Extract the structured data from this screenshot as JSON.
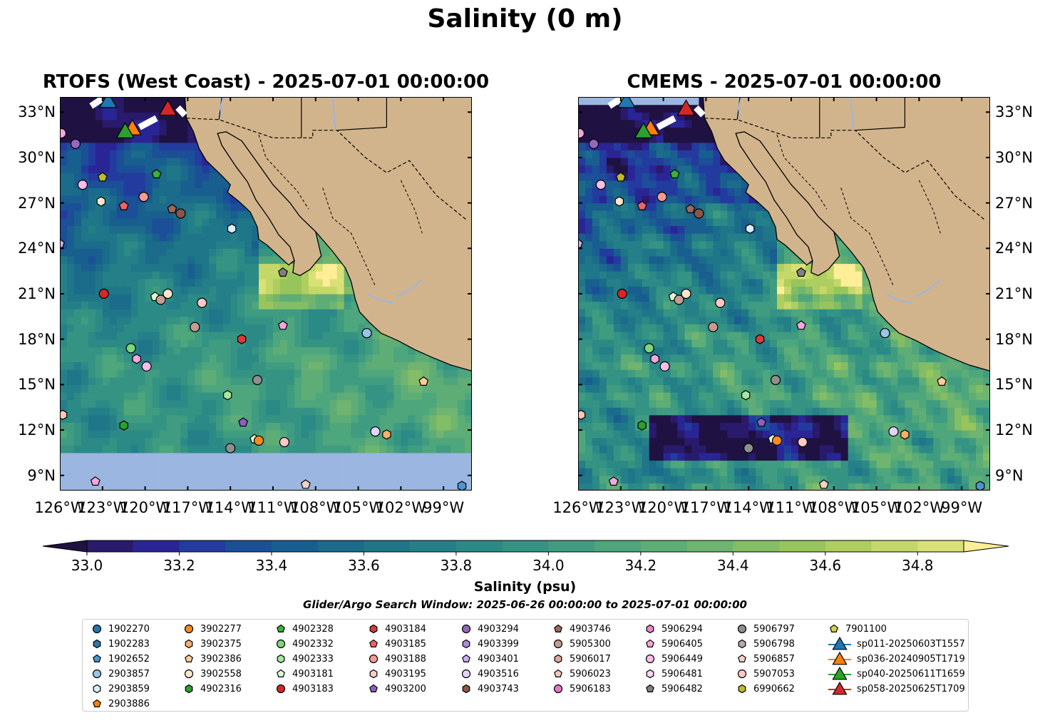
{
  "title": "Salinity (0 m)",
  "panels": [
    {
      "title": "RTOFS (West Coast) - 2025-07-01 00:00:00"
    },
    {
      "title": "CMEMS - 2025-07-01 00:00:00"
    }
  ],
  "lon_ticks": [
    "126°W",
    "123°W",
    "120°W",
    "117°W",
    "114°W",
    "111°W",
    "108°W",
    "105°W",
    "102°W",
    "99°W"
  ],
  "lat_ticks": [
    "33°N",
    "30°N",
    "27°N",
    "24°N",
    "21°N",
    "18°N",
    "15°N",
    "12°N",
    "9°N"
  ],
  "extent": {
    "lon": [
      -126,
      -97
    ],
    "lat": [
      8,
      34
    ]
  },
  "colors": {
    "land": "#d2b48c",
    "nodata": "#9bb6e0"
  },
  "colorbar": {
    "label": "Salinity (psu)",
    "min": 33.0,
    "max": 34.9,
    "ticks": [
      "33.0",
      "33.2",
      "33.4",
      "33.6",
      "33.8",
      "34.0",
      "34.2",
      "34.4",
      "34.6",
      "34.8"
    ],
    "colors": [
      "#2a1a6c",
      "#2a2596",
      "#233b9e",
      "#1b4f97",
      "#185f8f",
      "#1b6b8b",
      "#1f7689",
      "#257f88",
      "#2b8a86",
      "#359384",
      "#409c80",
      "#4ea67c",
      "#5ead76",
      "#6fb56f",
      "#83bd65",
      "#97c55c",
      "#aece5f",
      "#c4d86a",
      "#d9e076"
    ],
    "extend_low": "#1f1242",
    "extend_high": "#fdee97"
  },
  "search_window": "Glider/Argo Search Window: 2025-06-26 00:00:00 to 2025-07-01 00:00:00",
  "legend": [
    {
      "label": "1902270",
      "marker": "circle",
      "color": "#1f77b4"
    },
    {
      "label": "1902283",
      "marker": "hexagon",
      "color": "#2e78a8"
    },
    {
      "label": "1902652",
      "marker": "pentagon",
      "color": "#4c96cf"
    },
    {
      "label": "2903857",
      "marker": "circle",
      "color": "#9ac4ea"
    },
    {
      "label": "2903859",
      "marker": "hexagon",
      "color": "#d8eefb"
    },
    {
      "label": "2903886",
      "marker": "pentagon",
      "color": "#ff7f0e"
    },
    {
      "label": "3902277",
      "marker": "circle",
      "color": "#ff8a1f"
    },
    {
      "label": "3902375",
      "marker": "hexagon",
      "color": "#ffaf6a"
    },
    {
      "label": "3902386",
      "marker": "pentagon",
      "color": "#ffcc99"
    },
    {
      "label": "3902558",
      "marker": "circle",
      "color": "#ffe6cc"
    },
    {
      "label": "4902316",
      "marker": "hexagon",
      "color": "#2ca02c"
    },
    {
      "label": "4902328",
      "marker": "pentagon",
      "color": "#3bb13b"
    },
    {
      "label": "4902332",
      "marker": "circle",
      "color": "#7cd67c"
    },
    {
      "label": "4902333",
      "marker": "hexagon",
      "color": "#a8e6a0"
    },
    {
      "label": "4903181",
      "marker": "pentagon",
      "color": "#ddf7d4"
    },
    {
      "label": "4903183",
      "marker": "circle",
      "color": "#d62728"
    },
    {
      "label": "4903184",
      "marker": "hexagon",
      "color": "#d93a3a"
    },
    {
      "label": "4903185",
      "marker": "pentagon",
      "color": "#ee6464"
    },
    {
      "label": "4903188",
      "marker": "circle",
      "color": "#f59a94"
    },
    {
      "label": "4903195",
      "marker": "hexagon",
      "color": "#fdcfc7"
    },
    {
      "label": "4903200",
      "marker": "pentagon",
      "color": "#8c5fc0"
    },
    {
      "label": "4903294",
      "marker": "circle",
      "color": "#9467bd"
    },
    {
      "label": "4903399",
      "marker": "hexagon",
      "color": "#b08ad8"
    },
    {
      "label": "4903401",
      "marker": "pentagon",
      "color": "#c9aff0"
    },
    {
      "label": "4903516",
      "marker": "circle",
      "color": "#e3d3fb"
    },
    {
      "label": "4903743",
      "marker": "hexagon",
      "color": "#8c564b"
    },
    {
      "label": "4903746",
      "marker": "pentagon",
      "color": "#a0685c"
    },
    {
      "label": "5905300",
      "marker": "circle",
      "color": "#c49c94"
    },
    {
      "label": "5906017",
      "marker": "hexagon",
      "color": "#dfa99b"
    },
    {
      "label": "5906023",
      "marker": "pentagon",
      "color": "#f6c9bb"
    },
    {
      "label": "5906183",
      "marker": "circle",
      "color": "#e377c2"
    },
    {
      "label": "5906294",
      "marker": "hexagon",
      "color": "#ea85cf"
    },
    {
      "label": "5906405",
      "marker": "pentagon",
      "color": "#f4a6dd"
    },
    {
      "label": "5906449",
      "marker": "circle",
      "color": "#f8bde8"
    },
    {
      "label": "5906481",
      "marker": "hexagon",
      "color": "#fbd6ef"
    },
    {
      "label": "5906482",
      "marker": "pentagon",
      "color": "#7f7f7f"
    },
    {
      "label": "5906797",
      "marker": "circle",
      "color": "#8f8f8f"
    },
    {
      "label": "5906798",
      "marker": "hexagon",
      "color": "#b5a9a5"
    },
    {
      "label": "5906857",
      "marker": "pentagon",
      "color": "#f3d2cc"
    },
    {
      "label": "5907053",
      "marker": "circle",
      "color": "#fcc9c4"
    },
    {
      "label": "6990662",
      "marker": "hexagon",
      "color": "#bcbd22"
    },
    {
      "label": "7901100",
      "marker": "pentagon",
      "color": "#d2d34a"
    },
    {
      "label": "sp011-20250603T1557",
      "marker": "triangle",
      "color": "#1f77b4"
    },
    {
      "label": "sp036-20240905T1719",
      "marker": "triangle",
      "color": "#ff7f0e"
    },
    {
      "label": "sp040-20250611T1659",
      "marker": "triangle",
      "color": "#2ca02c"
    },
    {
      "label": "sp058-20250625T1709",
      "marker": "triangle",
      "color": "#d62728"
    }
  ],
  "floats": [
    {
      "lon": -125.9,
      "lat": 31.6,
      "marker": "circle",
      "color": "#f4a6dd"
    },
    {
      "lon": -124.9,
      "lat": 30.9,
      "marker": "circle",
      "color": "#9467bd"
    },
    {
      "lon": -124.4,
      "lat": 28.2,
      "marker": "circle",
      "color": "#f8bde8"
    },
    {
      "lon": -123.1,
      "lat": 27.1,
      "marker": "hexagon",
      "color": "#ffe6cc"
    },
    {
      "lon": -121.5,
      "lat": 26.8,
      "marker": "pentagon",
      "color": "#ee6464"
    },
    {
      "lon": -120.1,
      "lat": 27.4,
      "marker": "circle",
      "color": "#f59a94"
    },
    {
      "lon": -118.1,
      "lat": 26.6,
      "marker": "pentagon",
      "color": "#a0685c"
    },
    {
      "lon": -117.5,
      "lat": 26.3,
      "marker": "circle",
      "color": "#8c564b"
    },
    {
      "lon": -119.2,
      "lat": 28.9,
      "marker": "pentagon",
      "color": "#3bb13b"
    },
    {
      "lon": -123.0,
      "lat": 28.7,
      "marker": "pentagon",
      "color": "#bcbd22"
    },
    {
      "lon": -113.9,
      "lat": 25.3,
      "marker": "hexagon",
      "color": "#d8eefb"
    },
    {
      "lon": -126.0,
      "lat": 24.3,
      "marker": "pentagon",
      "color": "#c9aff0"
    },
    {
      "lon": -110.3,
      "lat": 22.4,
      "marker": "pentagon",
      "color": "#7f7f7f"
    },
    {
      "lon": -122.9,
      "lat": 21.0,
      "marker": "circle",
      "color": "#d62728"
    },
    {
      "lon": -119.3,
      "lat": 20.8,
      "marker": "pentagon",
      "color": "#ddf7d4"
    },
    {
      "lon": -118.9,
      "lat": 20.6,
      "marker": "circle",
      "color": "#c49c94"
    },
    {
      "lon": -118.4,
      "lat": 21.0,
      "marker": "circle",
      "color": "#ffe6cc"
    },
    {
      "lon": -116.0,
      "lat": 20.4,
      "marker": "circle",
      "color": "#fcc9c4"
    },
    {
      "lon": -116.5,
      "lat": 18.8,
      "marker": "circle",
      "color": "#c49c94"
    },
    {
      "lon": -110.3,
      "lat": 18.9,
      "marker": "pentagon",
      "color": "#f4a6dd"
    },
    {
      "lon": -113.2,
      "lat": 18.0,
      "marker": "hexagon",
      "color": "#d93a3a"
    },
    {
      "lon": -104.4,
      "lat": 18.4,
      "marker": "circle",
      "color": "#9ac4ea"
    },
    {
      "lon": -121.0,
      "lat": 17.4,
      "marker": "circle",
      "color": "#7cd67c"
    },
    {
      "lon": -120.6,
      "lat": 16.7,
      "marker": "hexagon",
      "color": "#f4a6dd"
    },
    {
      "lon": -119.9,
      "lat": 16.2,
      "marker": "circle",
      "color": "#f8bde8"
    },
    {
      "lon": -112.1,
      "lat": 15.3,
      "marker": "circle",
      "color": "#8f8f8f"
    },
    {
      "lon": -100.4,
      "lat": 15.2,
      "marker": "pentagon",
      "color": "#ffcc99"
    },
    {
      "lon": -114.2,
      "lat": 14.3,
      "marker": "hexagon",
      "color": "#a8e6a0"
    },
    {
      "lon": -125.8,
      "lat": 13.0,
      "marker": "hexagon",
      "color": "#f6c9bb"
    },
    {
      "lon": -121.5,
      "lat": 12.3,
      "marker": "hexagon",
      "color": "#2ca02c"
    },
    {
      "lon": -113.1,
      "lat": 12.5,
      "marker": "pentagon",
      "color": "#8c5fc0"
    },
    {
      "lon": -103.8,
      "lat": 11.9,
      "marker": "circle",
      "color": "#e3d3fb"
    },
    {
      "lon": -103.0,
      "lat": 11.7,
      "marker": "hexagon",
      "color": "#ffaf6a"
    },
    {
      "lon": -112.3,
      "lat": 11.4,
      "marker": "pentagon",
      "color": "#ddf7d4"
    },
    {
      "lon": -112.0,
      "lat": 11.3,
      "marker": "circle",
      "color": "#ff8a1f"
    },
    {
      "lon": -110.2,
      "lat": 11.2,
      "marker": "circle",
      "color": "#fcc9c4"
    },
    {
      "lon": -114.0,
      "lat": 10.8,
      "marker": "circle",
      "color": "#8f8f8f"
    },
    {
      "lon": -123.5,
      "lat": 8.6,
      "marker": "pentagon",
      "color": "#f4a6dd"
    },
    {
      "lon": -108.7,
      "lat": 8.4,
      "marker": "pentagon",
      "color": "#f3d2cc"
    },
    {
      "lon": -97.7,
      "lat": 8.3,
      "marker": "hexagon",
      "color": "#4c96cf"
    }
  ],
  "gliders": [
    {
      "lon": -122.6,
      "lat": 33.7,
      "color": "#1f77b4"
    },
    {
      "lon": -120.9,
      "lat": 31.9,
      "color": "#ff7f0e"
    },
    {
      "lon": -121.4,
      "lat": 31.7,
      "color": "#2ca02c"
    },
    {
      "lon": -118.4,
      "lat": 33.2,
      "color": "#d62728"
    }
  ]
}
